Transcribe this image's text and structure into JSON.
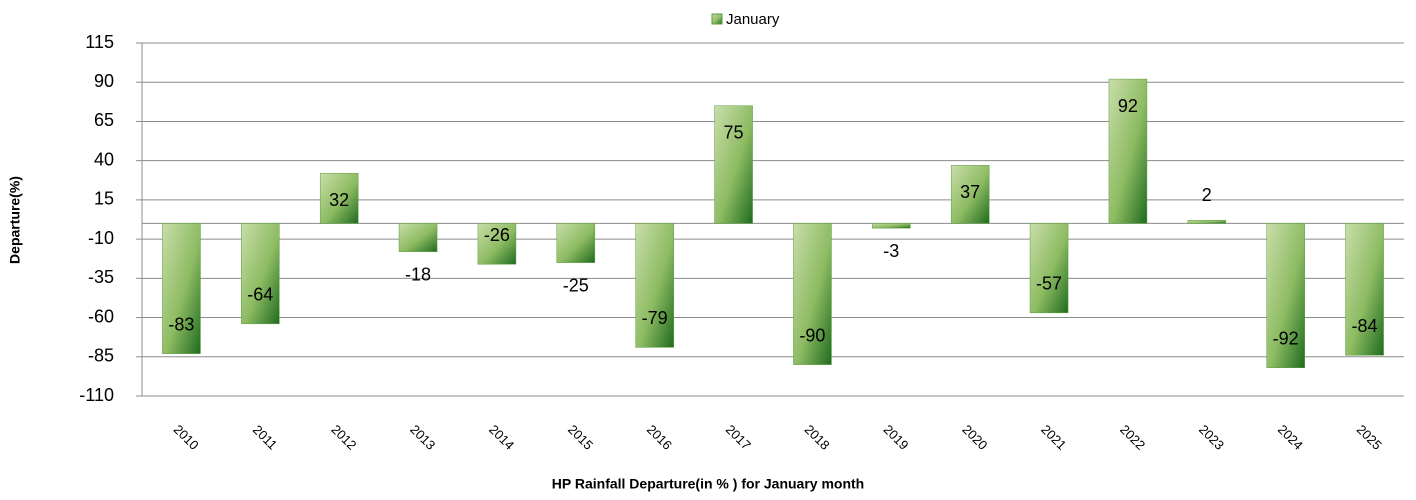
{
  "chart_data": {
    "type": "bar",
    "title": "HP Rainfall  Departure(in % ) for  January month",
    "y_label": "Departure(%)",
    "categories": [
      "2010",
      "2011",
      "2012",
      "2013",
      "2014",
      "2015",
      "2016",
      "2017",
      "2018",
      "2019",
      "2020",
      "2021",
      "2022",
      "2023",
      "2024",
      "2025"
    ],
    "series": [
      {
        "name": "January",
        "color": "#5a9e3a",
        "values": [
          -83,
          -64,
          32,
          -18,
          -26,
          -25,
          -79,
          75,
          -90,
          -3,
          37,
          -57,
          92,
          2,
          -92,
          -84
        ]
      }
    ],
    "ylim": [
      -110,
      115
    ],
    "yticks": [
      115,
      90,
      65,
      40,
      15,
      -10,
      -35,
      -60,
      -85,
      -110
    ],
    "grid": true,
    "legend": "top"
  }
}
